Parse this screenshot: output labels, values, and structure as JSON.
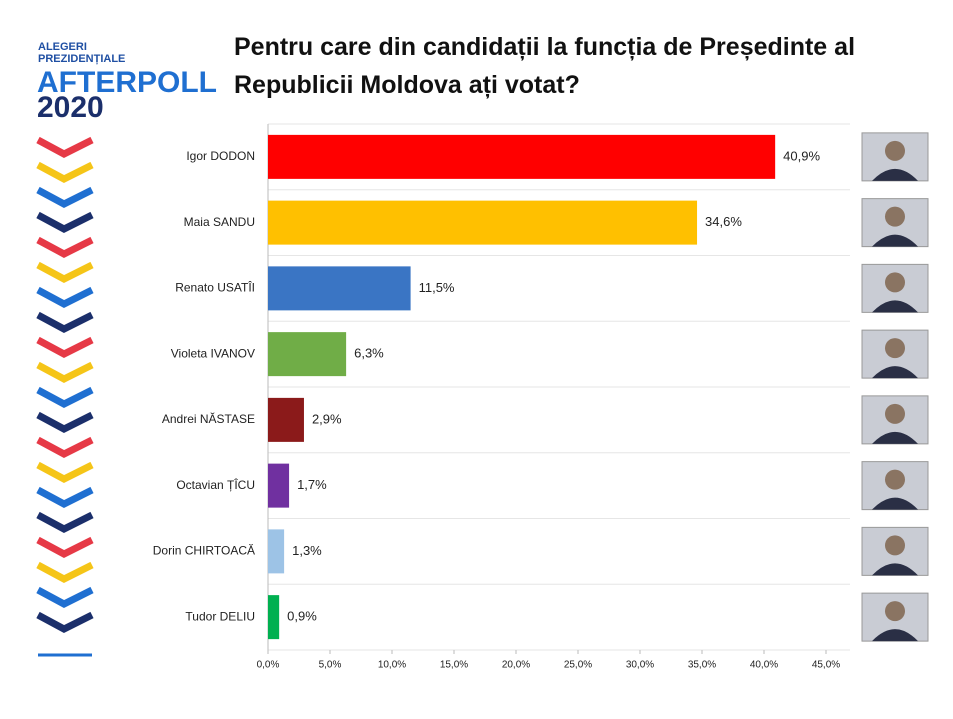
{
  "logo": {
    "line1": "ALEGERI",
    "line2": "PREZIDENȚIALE",
    "brand": "AFTERPOLL",
    "year": "2020"
  },
  "chart_data": {
    "type": "hbar",
    "title": "Pentru care din candidații la funcția de Președinte al Republicii Moldova ați votat?",
    "categories": [
      "Igor DODON",
      "Maia SANDU",
      "Renato USATÎI",
      "Violeta IVANOV",
      "Andrei NĂSTASE",
      "Octavian ȚÎCU",
      "Dorin CHIRTOACĂ",
      "Tudor DELIU"
    ],
    "values": [
      40.9,
      34.6,
      11.5,
      6.3,
      2.9,
      1.7,
      1.3,
      0.9
    ],
    "value_labels": [
      "40,9%",
      "34,6%",
      "11,5%",
      "6,3%",
      "2,9%",
      "1,7%",
      "1,3%",
      "0,9%"
    ],
    "colors": [
      "#ff0000",
      "#ffc000",
      "#3a75c4",
      "#70ad47",
      "#8b1a1a",
      "#7030a0",
      "#9dc3e6",
      "#00b050"
    ],
    "xlim": [
      0,
      45
    ],
    "xticks": [
      {
        "value": 0,
        "label": "0,0%"
      },
      {
        "value": 5,
        "label": "5,0%"
      },
      {
        "value": 10,
        "label": "10,0%"
      },
      {
        "value": 15,
        "label": "15,0%"
      },
      {
        "value": 20,
        "label": "20,0%"
      },
      {
        "value": 25,
        "label": "25,0%"
      },
      {
        "value": 30,
        "label": "30,0%"
      },
      {
        "value": 35,
        "label": "35,0%"
      },
      {
        "value": 40,
        "label": "40,0%"
      },
      {
        "value": 45,
        "label": "45,0%"
      }
    ],
    "grid": false
  }
}
